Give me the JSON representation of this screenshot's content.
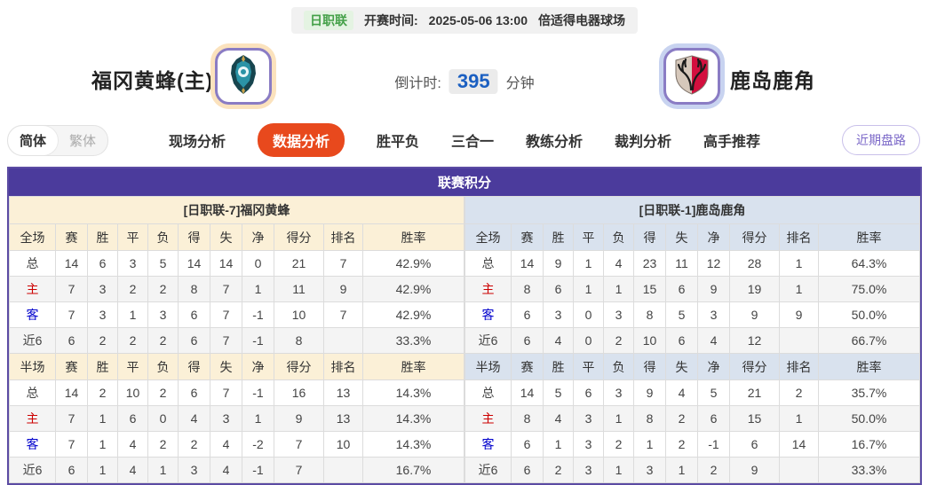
{
  "colors": {
    "primary_purple": "#4b3b9c",
    "table_border_purple": "#5b4ba3",
    "home_header_bg": "#fbf0d7",
    "away_header_bg": "#d9e2ee",
    "active_tab_orange": "#e8491d",
    "countdown_blue": "#1b5fc1",
    "league_badge_green": "#44a048",
    "home_row_label_red": "#cc0000",
    "away_row_label_blue": "#0000cc"
  },
  "match_header": {
    "league_badge": "日职联",
    "kickoff_label": "开赛时间:",
    "kickoff_time": "2025-05-06 13:00",
    "venue": "倍适得电器球场",
    "home_team_name": "福冈黄蜂(主)",
    "away_team_name": "鹿岛鹿角",
    "home_logo_icon": "avispa-fukuoka-crest-icon",
    "away_logo_icon": "kashima-antlers-shield-icon",
    "countdown_label": "倒计时:",
    "countdown_minutes": "395",
    "countdown_unit": "分钟"
  },
  "language_toggle": {
    "simplified_label": "简体",
    "traditional_label": "繁体",
    "active": "简体"
  },
  "tabs": [
    {
      "label": "现场分析",
      "active": false
    },
    {
      "label": "数据分析",
      "active": true
    },
    {
      "label": "胜平负",
      "active": false
    },
    {
      "label": "三合一",
      "active": false
    },
    {
      "label": "教练分析",
      "active": false
    },
    {
      "label": "裁判分析",
      "active": false
    },
    {
      "label": "高手推荐",
      "active": false
    }
  ],
  "recent_trend_button": "近期盘路",
  "league_table": {
    "title": "联赛积分",
    "columns_full": [
      "全场",
      "赛",
      "胜",
      "平",
      "负",
      "得",
      "失",
      "净",
      "得分",
      "排名",
      "胜率"
    ],
    "columns_half": [
      "半场",
      "赛",
      "胜",
      "平",
      "负",
      "得",
      "失",
      "净",
      "得分",
      "排名",
      "胜率"
    ],
    "row_label_colors": {
      "主": "#cc0000",
      "客": "#0000cc"
    },
    "home": {
      "header": "[日职联-7]福冈黄蜂",
      "full": [
        [
          "总",
          "14",
          "6",
          "3",
          "5",
          "14",
          "14",
          "0",
          "21",
          "7",
          "42.9%"
        ],
        [
          "主",
          "7",
          "3",
          "2",
          "2",
          "8",
          "7",
          "1",
          "11",
          "9",
          "42.9%"
        ],
        [
          "客",
          "7",
          "3",
          "1",
          "3",
          "6",
          "7",
          "-1",
          "10",
          "7",
          "42.9%"
        ],
        [
          "近6",
          "6",
          "2",
          "2",
          "2",
          "6",
          "7",
          "-1",
          "8",
          "",
          "33.3%"
        ]
      ],
      "half": [
        [
          "总",
          "14",
          "2",
          "10",
          "2",
          "6",
          "7",
          "-1",
          "16",
          "13",
          "14.3%"
        ],
        [
          "主",
          "7",
          "1",
          "6",
          "0",
          "4",
          "3",
          "1",
          "9",
          "13",
          "14.3%"
        ],
        [
          "客",
          "7",
          "1",
          "4",
          "2",
          "2",
          "4",
          "-2",
          "7",
          "10",
          "14.3%"
        ],
        [
          "近6",
          "6",
          "1",
          "4",
          "1",
          "3",
          "4",
          "-1",
          "7",
          "",
          "16.7%"
        ]
      ]
    },
    "away": {
      "header": "[日职联-1]鹿岛鹿角",
      "full": [
        [
          "总",
          "14",
          "9",
          "1",
          "4",
          "23",
          "11",
          "12",
          "28",
          "1",
          "64.3%"
        ],
        [
          "主",
          "8",
          "6",
          "1",
          "1",
          "15",
          "6",
          "9",
          "19",
          "1",
          "75.0%"
        ],
        [
          "客",
          "6",
          "3",
          "0",
          "3",
          "8",
          "5",
          "3",
          "9",
          "9",
          "50.0%"
        ],
        [
          "近6",
          "6",
          "4",
          "0",
          "2",
          "10",
          "6",
          "4",
          "12",
          "",
          "66.7%"
        ]
      ],
      "half": [
        [
          "总",
          "14",
          "5",
          "6",
          "3",
          "9",
          "4",
          "5",
          "21",
          "2",
          "35.7%"
        ],
        [
          "主",
          "8",
          "4",
          "3",
          "1",
          "8",
          "2",
          "6",
          "15",
          "1",
          "50.0%"
        ],
        [
          "客",
          "6",
          "1",
          "3",
          "2",
          "1",
          "2",
          "-1",
          "6",
          "14",
          "16.7%"
        ],
        [
          "近6",
          "6",
          "2",
          "3",
          "1",
          "3",
          "1",
          "2",
          "9",
          "",
          "33.3%"
        ]
      ]
    }
  }
}
